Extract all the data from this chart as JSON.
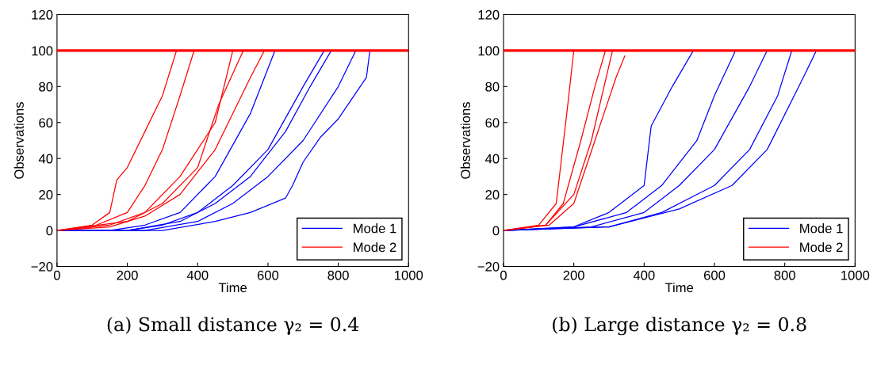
{
  "chart_data": [
    {
      "type": "line",
      "xlabel": "Time",
      "ylabel": "Observations",
      "xlim": [
        0,
        1000
      ],
      "ylim": [
        -20,
        120
      ],
      "xticks": [
        0,
        200,
        400,
        600,
        800,
        1000
      ],
      "yticks": [
        {
          "value": -20,
          "label": "−20"
        },
        0,
        20,
        40,
        60,
        80,
        100,
        120
      ],
      "grid": false,
      "legend": "bottom right",
      "marker": "none",
      "line_style": "solid",
      "annotations": [
        "(a) Small distance γ₂ = 0.4"
      ],
      "ref_lines": [
        {
          "axis": "y",
          "value": 100,
          "color": "#ff0000"
        }
      ],
      "series": [
        {
          "name": "Mode 1",
          "color": "#0000ff",
          "x": [
            0,
            150,
            250,
            350,
            450,
            550,
            620
          ],
          "values": [
            0,
            0,
            3,
            10,
            30,
            65,
            100
          ]
        },
        {
          "color": "#0000ff",
          "x": [
            0,
            200,
            300,
            400,
            500,
            600,
            700,
            760
          ],
          "values": [
            0,
            0,
            3,
            10,
            25,
            45,
            80,
            100
          ]
        },
        {
          "color": "#0000ff",
          "x": [
            0,
            250,
            400,
            500,
            600,
            700,
            800,
            850
          ],
          "values": [
            0,
            0,
            5,
            15,
            30,
            50,
            80,
            100
          ]
        },
        {
          "color": "#0000ff",
          "x": [
            0,
            300,
            450,
            550,
            650,
            670,
            700,
            750,
            800,
            880,
            890
          ],
          "values": [
            0,
            0,
            5,
            10,
            18,
            25,
            38,
            52,
            62,
            85,
            100
          ]
        },
        {
          "color": "#0000ff",
          "x": [
            0,
            200,
            350,
            450,
            550,
            650,
            720,
            780
          ],
          "values": [
            0,
            0,
            5,
            15,
            30,
            55,
            80,
            100
          ]
        },
        {
          "name": "Mode 2",
          "color": "#ff0000",
          "x": [
            0,
            100,
            150,
            170,
            200,
            250,
            300,
            340
          ],
          "values": [
            0,
            3,
            10,
            28,
            35,
            55,
            75,
            100
          ]
        },
        {
          "color": "#ff0000",
          "x": [
            0,
            100,
            200,
            250,
            300,
            350,
            390
          ],
          "values": [
            0,
            2,
            10,
            25,
            45,
            75,
            100
          ]
        },
        {
          "color": "#ff0000",
          "x": [
            0,
            150,
            250,
            350,
            450,
            500
          ],
          "values": [
            0,
            3,
            10,
            30,
            60,
            100
          ]
        },
        {
          "color": "#ff0000",
          "x": [
            0,
            150,
            250,
            350,
            450,
            550,
            590
          ],
          "values": [
            0,
            2,
            8,
            20,
            45,
            85,
            100
          ]
        },
        {
          "color": "#ff0000",
          "x": [
            0,
            200,
            300,
            400,
            460,
            530
          ],
          "values": [
            0,
            5,
            15,
            35,
            70,
            100
          ]
        }
      ]
    },
    {
      "type": "line",
      "xlabel": "Time",
      "ylabel": "Observations",
      "xlim": [
        0,
        1000
      ],
      "ylim": [
        -20,
        120
      ],
      "xticks": [
        0,
        200,
        400,
        600,
        800,
        1000
      ],
      "yticks": [
        {
          "value": -20,
          "label": "−20"
        },
        0,
        20,
        40,
        60,
        80,
        100,
        120
      ],
      "grid": false,
      "legend": "bottom right",
      "marker": "none",
      "line_style": "solid",
      "annotations": [
        "(b) Large distance γ₂ = 0.8"
      ],
      "ref_lines": [
        {
          "axis": "y",
          "value": 100,
          "color": "#ff0000"
        }
      ],
      "series": [
        {
          "name": "Mode 1",
          "color": "#0000ff",
          "x": [
            0,
            200,
            300,
            400,
            420,
            480,
            540
          ],
          "values": [
            0,
            2,
            10,
            25,
            58,
            80,
            100
          ]
        },
        {
          "color": "#0000ff",
          "x": [
            0,
            200,
            350,
            450,
            550,
            600,
            660
          ],
          "values": [
            0,
            2,
            10,
            25,
            50,
            75,
            100
          ]
        },
        {
          "color": "#0000ff",
          "x": [
            0,
            250,
            400,
            500,
            600,
            700,
            750
          ],
          "values": [
            0,
            2,
            10,
            25,
            45,
            80,
            100
          ]
        },
        {
          "color": "#0000ff",
          "x": [
            0,
            300,
            450,
            600,
            700,
            780,
            820
          ],
          "values": [
            0,
            2,
            10,
            25,
            45,
            75,
            100
          ]
        },
        {
          "color": "#0000ff",
          "x": [
            0,
            300,
            500,
            650,
            750,
            840,
            890
          ],
          "values": [
            0,
            2,
            12,
            25,
            45,
            80,
            100
          ]
        },
        {
          "name": "Mode 2",
          "color": "#ff0000",
          "x": [
            0,
            100,
            150,
            180,
            200
          ],
          "values": [
            0,
            3,
            15,
            65,
            100
          ]
        },
        {
          "color": "#ff0000",
          "x": [
            0,
            120,
            170,
            220,
            260,
            290
          ],
          "values": [
            0,
            3,
            15,
            50,
            80,
            100
          ]
        },
        {
          "color": "#ff0000",
          "x": [
            0,
            120,
            200,
            250,
            310
          ],
          "values": [
            0,
            3,
            20,
            50,
            100
          ]
        },
        {
          "color": "#ff0000",
          "x": [
            0,
            130,
            200,
            260,
            320,
            345
          ],
          "values": [
            0,
            3,
            15,
            50,
            85,
            97
          ]
        }
      ]
    }
  ]
}
